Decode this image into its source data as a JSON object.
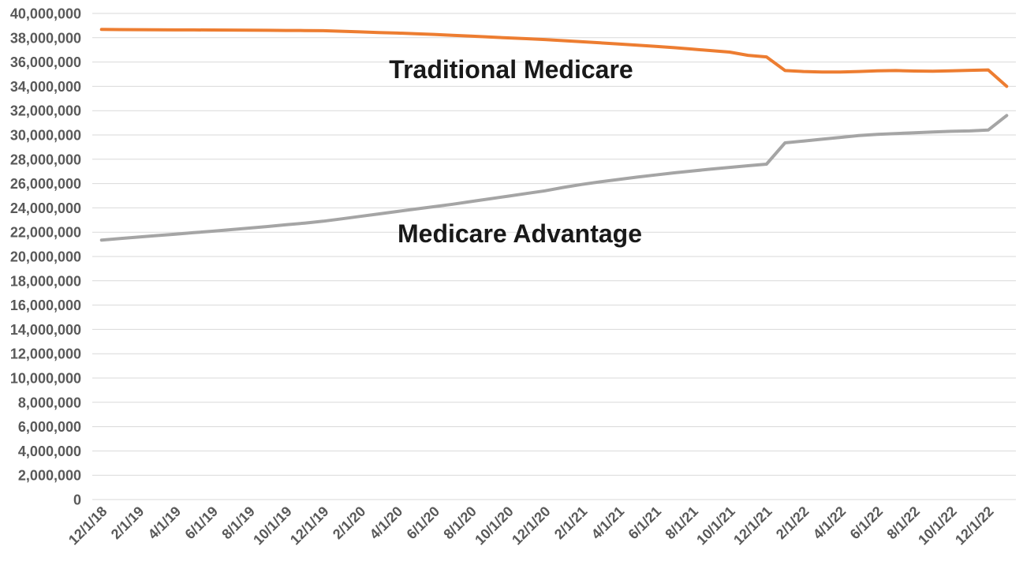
{
  "chart_data": {
    "type": "line",
    "title": "",
    "xlabel": "",
    "ylabel": "",
    "grid": "horizontal",
    "legend_position": "none",
    "y_axis": {
      "min": 0,
      "max": 40000000,
      "tick_step": 2000000,
      "tick_labels": [
        "40,000,000",
        "38,000,000",
        "36,000,000",
        "34,000,000",
        "32,000,000",
        "30,000,000",
        "28,000,000",
        "26,000,000",
        "24,000,000",
        "22,000,000",
        "20,000,000",
        "18,000,000",
        "16,000,000",
        "14,000,000",
        "12,000,000",
        "10,000,000",
        "8,000,000",
        "6,000,000",
        "4,000,000",
        "2,000,000",
        "0"
      ]
    },
    "x_axis": {
      "tick_labels": [
        "12/1/18",
        "2/1/19",
        "4/1/19",
        "6/1/19",
        "8/1/19",
        "10/1/19",
        "12/1/19",
        "2/1/20",
        "4/1/20",
        "6/1/20",
        "8/1/20",
        "10/1/20",
        "12/1/20",
        "2/1/21",
        "4/1/21",
        "6/1/21",
        "8/1/21",
        "10/1/21",
        "12/1/21",
        "2/1/22",
        "4/1/22",
        "6/1/22",
        "8/1/22",
        "10/1/22",
        "12/1/22"
      ],
      "categories": [
        "12/1/18",
        "1/1/19",
        "2/1/19",
        "3/1/19",
        "4/1/19",
        "5/1/19",
        "6/1/19",
        "7/1/19",
        "8/1/19",
        "9/1/19",
        "10/1/19",
        "11/1/19",
        "12/1/19",
        "1/1/20",
        "2/1/20",
        "3/1/20",
        "4/1/20",
        "5/1/20",
        "6/1/20",
        "7/1/20",
        "8/1/20",
        "9/1/20",
        "10/1/20",
        "11/1/20",
        "12/1/20",
        "1/1/21",
        "2/1/21",
        "3/1/21",
        "4/1/21",
        "5/1/21",
        "6/1/21",
        "7/1/21",
        "8/1/21",
        "9/1/21",
        "10/1/21",
        "11/1/21",
        "12/1/21",
        "1/1/22",
        "2/1/22",
        "3/1/22",
        "4/1/22",
        "5/1/22",
        "6/1/22",
        "7/1/22",
        "8/1/22",
        "9/1/22",
        "10/1/22",
        "11/1/22",
        "12/1/22",
        "1/1/23"
      ]
    },
    "series": [
      {
        "name": "Traditional Medicare",
        "color": "#ED7D31",
        "values": [
          38680000,
          38670000,
          38660000,
          38650000,
          38645000,
          38640000,
          38635000,
          38630000,
          38620000,
          38610000,
          38600000,
          38590000,
          38580000,
          38530000,
          38480000,
          38430000,
          38380000,
          38330000,
          38270000,
          38200000,
          38130000,
          38060000,
          37990000,
          37920000,
          37850000,
          37760000,
          37670000,
          37580000,
          37490000,
          37390000,
          37290000,
          37180000,
          37060000,
          36940000,
          36820000,
          36550000,
          36420000,
          35300000,
          35220000,
          35180000,
          35180000,
          35220000,
          35280000,
          35300000,
          35260000,
          35240000,
          35280000,
          35320000,
          35350000,
          34000000
        ]
      },
      {
        "name": "Medicare Advantage",
        "color": "#A5A5A5",
        "values": [
          21350000,
          21480000,
          21600000,
          21720000,
          21840000,
          21960000,
          22080000,
          22210000,
          22340000,
          22470000,
          22610000,
          22750000,
          22900000,
          23100000,
          23300000,
          23500000,
          23700000,
          23900000,
          24100000,
          24300000,
          24520000,
          24740000,
          24960000,
          25180000,
          25400000,
          25680000,
          25930000,
          26140000,
          26340000,
          26530000,
          26710000,
          26880000,
          27040000,
          27190000,
          27330000,
          27470000,
          27600000,
          29350000,
          29500000,
          29650000,
          29800000,
          29950000,
          30050000,
          30120000,
          30180000,
          30240000,
          30300000,
          30330000,
          30400000,
          31600000
        ]
      }
    ],
    "annotations": [
      {
        "text": "Traditional Medicare",
        "series": "Traditional Medicare"
      },
      {
        "text": "Medicare Advantage",
        "series": "Medicare Advantage"
      }
    ]
  },
  "colors": {
    "background": "#FFFFFF",
    "gridline": "#D9D9D9",
    "axis_text": "#595959",
    "annotation_text": "#191919",
    "traditional_medicare_line": "#ED7D31",
    "medicare_advantage_line": "#A5A5A5"
  }
}
